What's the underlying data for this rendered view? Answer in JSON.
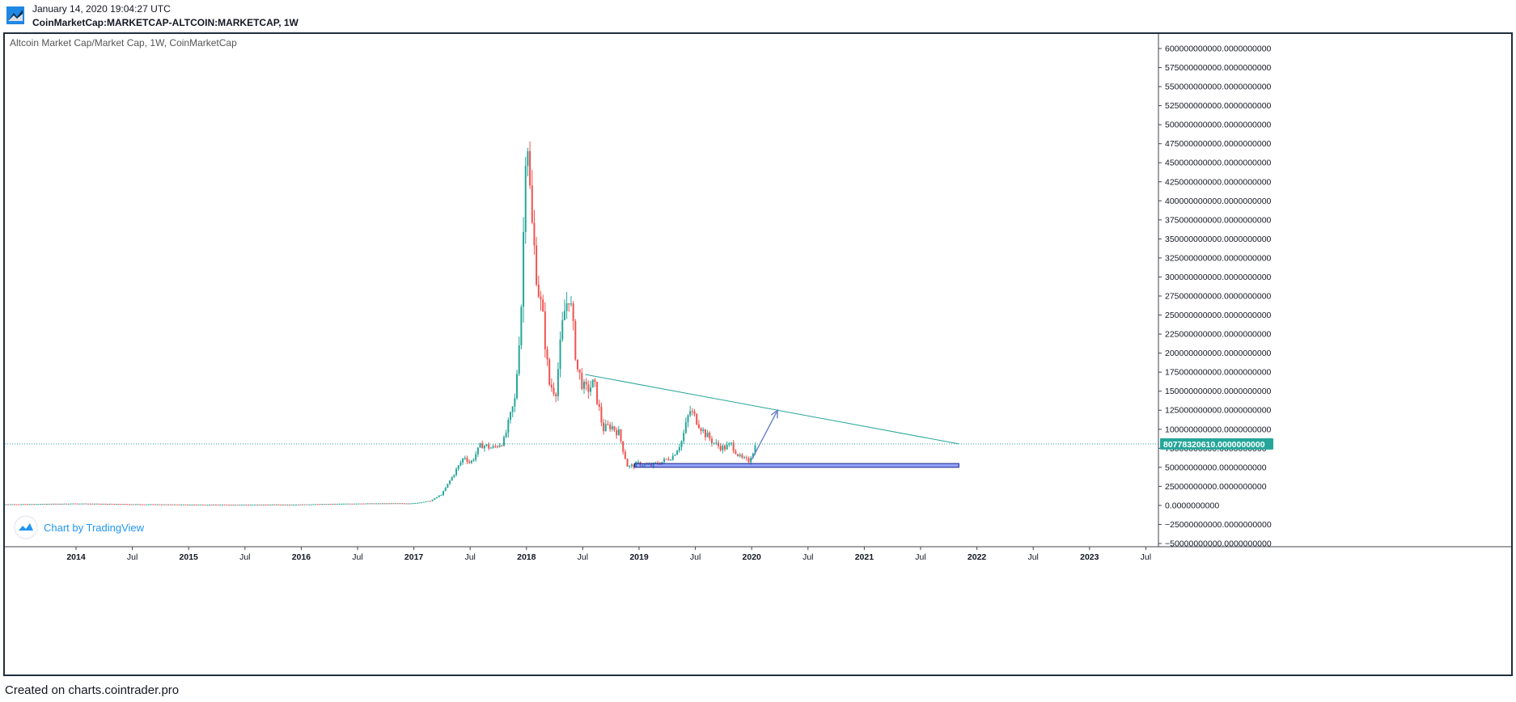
{
  "header": {
    "date": "January 14, 2020 19:04:27 UTC",
    "symbol": "CoinMarketCap:MARKETCAP-ALTCOIN:MARKETCAP, 1W"
  },
  "legend": {
    "title": "Altcoin Market Cap/Market Cap, 1W, CoinMarketCap"
  },
  "watermark": {
    "label": "Chart by TradingView"
  },
  "footer": {
    "text": "Created on charts.cointrader.pro"
  },
  "colors": {
    "up": "#26a69a",
    "down": "#ef5350",
    "trendline": "#26a69a",
    "support_zone": "#3d5afe",
    "arrow": "#6f86c9",
    "price_label_bg": "#26a69a",
    "frame": "#1e2f3c"
  },
  "chart_data": {
    "type": "candlestick",
    "title": "Altcoin Market Cap/Market Cap, 1W, CoinMarketCap",
    "xlabel": "",
    "ylabel": "",
    "xlim": [
      2013.0,
      2024.0
    ],
    "ylim": [
      -50000000000,
      600000000000
    ],
    "y_tick_labels": [
      "600000000000.0000000000",
      "575000000000.0000000000",
      "550000000000.0000000000",
      "525000000000.0000000000",
      "500000000000.0000000000",
      "475000000000.0000000000",
      "450000000000.0000000000",
      "425000000000.0000000000",
      "400000000000.0000000000",
      "375000000000.0000000000",
      "350000000000.0000000000",
      "325000000000.0000000000",
      "300000000000.0000000000",
      "275000000000.0000000000",
      "250000000000.0000000000",
      "225000000000.0000000000",
      "200000000000.0000000000",
      "175000000000.0000000000",
      "150000000000.0000000000",
      "125000000000.0000000000",
      "100000000000.0000000000",
      "75000000000.0000000000",
      "50000000000.0000000000",
      "25000000000.0000000000",
      "0.0000000000",
      "−25000000000.0000000000",
      "−50000000000.0000000000"
    ],
    "x_tick_labels": [
      {
        "label": "2014",
        "x": 2014.0,
        "major": true
      },
      {
        "label": "Jul",
        "x": 2014.5,
        "major": false
      },
      {
        "label": "2015",
        "x": 2015.0,
        "major": true
      },
      {
        "label": "Jul",
        "x": 2015.5,
        "major": false
      },
      {
        "label": "2016",
        "x": 2016.0,
        "major": true
      },
      {
        "label": "Jul",
        "x": 2016.5,
        "major": false
      },
      {
        "label": "2017",
        "x": 2017.0,
        "major": true
      },
      {
        "label": "Jul",
        "x": 2017.5,
        "major": false
      },
      {
        "label": "2018",
        "x": 2018.0,
        "major": true
      },
      {
        "label": "Jul",
        "x": 2018.5,
        "major": false
      },
      {
        "label": "2019",
        "x": 2019.0,
        "major": true
      },
      {
        "label": "Jul",
        "x": 2019.5,
        "major": false
      },
      {
        "label": "2020",
        "x": 2020.0,
        "major": true
      },
      {
        "label": "Jul",
        "x": 2020.5,
        "major": false
      },
      {
        "label": "2021",
        "x": 2021.0,
        "major": true
      },
      {
        "label": "Jul",
        "x": 2021.5,
        "major": false
      },
      {
        "label": "2022",
        "x": 2022.0,
        "major": true
      },
      {
        "label": "Jul",
        "x": 2022.5,
        "major": false
      },
      {
        "label": "2023",
        "x": 2023.0,
        "major": true
      },
      {
        "label": "Jul",
        "x": 2023.5,
        "major": false
      }
    ],
    "current_price": 80778320610,
    "current_price_label": "80778320610.0000000000",
    "close_series": {
      "interpolation": "weekly candles approximated between anchor closes",
      "anchors": [
        [
          2013.05,
          1200000000
        ],
        [
          2013.5,
          1500000000
        ],
        [
          2014.0,
          2500000000
        ],
        [
          2014.5,
          1600000000
        ],
        [
          2015.0,
          1100000000
        ],
        [
          2015.5,
          1000000000
        ],
        [
          2016.0,
          1200000000
        ],
        [
          2016.5,
          2500000000
        ],
        [
          2017.0,
          2800000000
        ],
        [
          2017.15,
          6000000000
        ],
        [
          2017.25,
          15000000000
        ],
        [
          2017.35,
          40000000000
        ],
        [
          2017.45,
          65000000000
        ],
        [
          2017.5,
          55000000000
        ],
        [
          2017.6,
          80000000000
        ],
        [
          2017.7,
          75000000000
        ],
        [
          2017.8,
          85000000000
        ],
        [
          2017.9,
          140000000000
        ],
        [
          2017.96,
          280000000000
        ],
        [
          2018.0,
          520000000000
        ],
        [
          2018.04,
          380000000000
        ],
        [
          2018.1,
          290000000000
        ],
        [
          2018.15,
          240000000000
        ],
        [
          2018.2,
          160000000000
        ],
        [
          2018.26,
          150000000000
        ],
        [
          2018.33,
          250000000000
        ],
        [
          2018.38,
          280000000000
        ],
        [
          2018.45,
          180000000000
        ],
        [
          2018.52,
          150000000000
        ],
        [
          2018.6,
          160000000000
        ],
        [
          2018.68,
          100000000000
        ],
        [
          2018.75,
          105000000000
        ],
        [
          2018.82,
          95000000000
        ],
        [
          2018.9,
          50000000000
        ],
        [
          2019.0,
          55000000000
        ],
        [
          2019.1,
          52000000000
        ],
        [
          2019.2,
          57000000000
        ],
        [
          2019.3,
          65000000000
        ],
        [
          2019.38,
          85000000000
        ],
        [
          2019.45,
          125000000000
        ],
        [
          2019.5,
          115000000000
        ],
        [
          2019.58,
          95000000000
        ],
        [
          2019.68,
          80000000000
        ],
        [
          2019.75,
          75000000000
        ],
        [
          2019.82,
          80000000000
        ],
        [
          2019.9,
          62000000000
        ],
        [
          2019.97,
          58000000000
        ],
        [
          2020.04,
          80778320610
        ]
      ]
    },
    "annotations": {
      "trendline": {
        "from": [
          2018.52,
          172000000000
        ],
        "to": [
          2021.84,
          80778320610
        ]
      },
      "support_zone": {
        "x1": 2018.96,
        "x2": 2021.84,
        "y_top": 55000000000,
        "y_bottom": 50000000000
      },
      "arrow": {
        "from": [
          2020.0,
          60000000000
        ],
        "to": [
          2020.23,
          125000000000
        ]
      }
    }
  }
}
